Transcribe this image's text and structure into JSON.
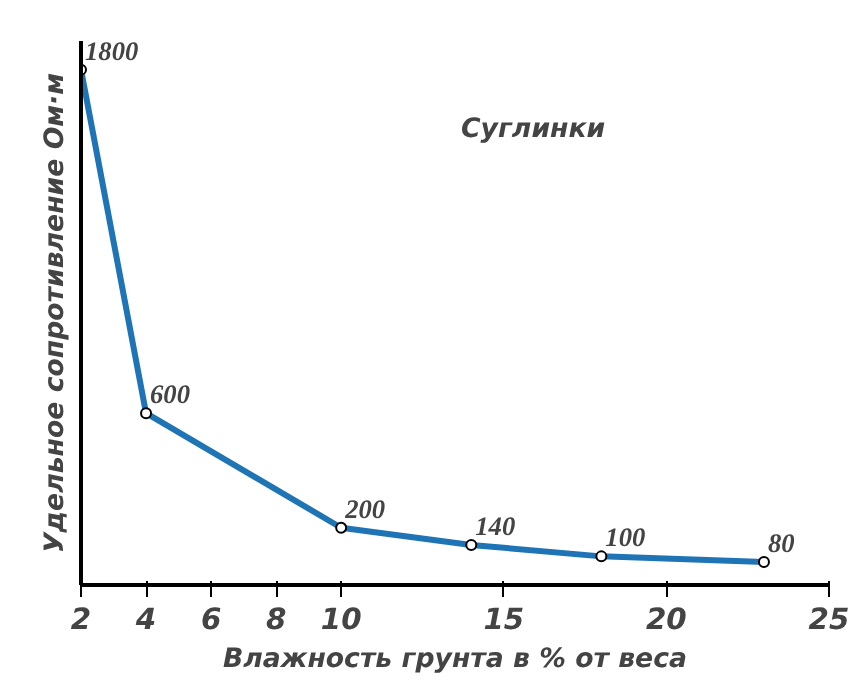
{
  "chart_data": {
    "type": "line",
    "xlabel": "Влажность грунта в % от веса",
    "ylabel": "Удельное сопротивление Ом·м",
    "x": [
      2,
      4,
      10,
      14,
      18,
      23
    ],
    "series": [
      {
        "color": "#1f74b5",
        "values": [
          1800,
          600,
          200,
          140,
          100,
          80
        ]
      }
    ],
    "data_labels": true,
    "marker": "circle",
    "line_style": "solid",
    "grid": false,
    "tick_labels": "x",
    "xlim": [
      2,
      25
    ],
    "ylim": [
      0,
      1900
    ],
    "xticks": [
      2,
      4,
      6,
      8,
      10,
      15,
      20,
      25
    ],
    "annotations": [
      "Суглинки"
    ]
  }
}
